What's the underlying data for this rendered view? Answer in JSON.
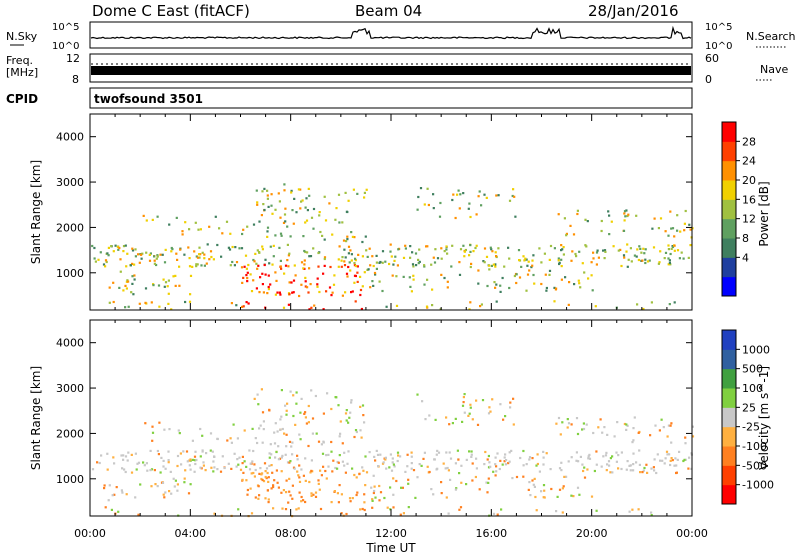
{
  "header": {
    "station": "Dome C East (fitACF)",
    "beam": "Beam 04",
    "date": "28/Jan/2016"
  },
  "strips": {
    "nsky_label": "N.Sky",
    "nsky_ticks": [
      "10^5",
      "10^0"
    ],
    "nsearch_label": "N.Search",
    "nsearch_ticks": [
      "10^5",
      "10^0"
    ],
    "freq_label": "Freq.",
    "freq_unit": "[MHz]",
    "freq_ticks": [
      "12",
      "8"
    ],
    "nave_label": "Nave",
    "nave_ticks": [
      "60",
      "0"
    ],
    "cpid_label": "CPID",
    "cpid_value": "twofsound 3501"
  },
  "chart_data": [
    {
      "type": "heatmap",
      "panel": "power",
      "ylabel": "Slant Range [km]",
      "xlabel": "Time UT",
      "x_ticks": [
        "00:00",
        "04:00",
        "08:00",
        "12:00",
        "16:00",
        "20:00",
        "00:00"
      ],
      "x_range_hours": [
        0,
        24
      ],
      "y_ticks": [
        1000,
        2000,
        3000,
        4000
      ],
      "y_range_km": [
        180,
        4500
      ],
      "colorbar": {
        "label": "Power [dB]",
        "ticks": [
          "28",
          "24",
          "20",
          "16",
          "12",
          "8",
          "4"
        ],
        "colors": [
          "#0000ff",
          "#1f3f9f",
          "#3f7f5f",
          "#5fa060",
          "#a0c040",
          "#f0d000",
          "#ff9000",
          "#ff4000",
          "#ff0000"
        ]
      }
    },
    {
      "type": "heatmap",
      "panel": "velocity",
      "ylabel": "Slant Range [km]",
      "xlabel": "Time UT",
      "x_ticks": [
        "00:00",
        "04:00",
        "08:00",
        "12:00",
        "16:00",
        "20:00",
        "00:00"
      ],
      "x_range_hours": [
        0,
        24
      ],
      "y_ticks": [
        1000,
        2000,
        3000,
        4000
      ],
      "y_range_km": [
        180,
        4500
      ],
      "colorbar": {
        "label": "Velocity [m s^-1]",
        "ticks": [
          "1000",
          "500",
          "100",
          "25",
          "-25",
          "-100",
          "-500",
          "-1000"
        ],
        "colors": [
          "#ff0000",
          "#ff4000",
          "#ff8020",
          "#ffb040",
          "#c8c8c8",
          "#80d040",
          "#40a040",
          "#3060a0",
          "#2040c0"
        ]
      }
    }
  ],
  "axis": {
    "time_label": "Time UT"
  }
}
